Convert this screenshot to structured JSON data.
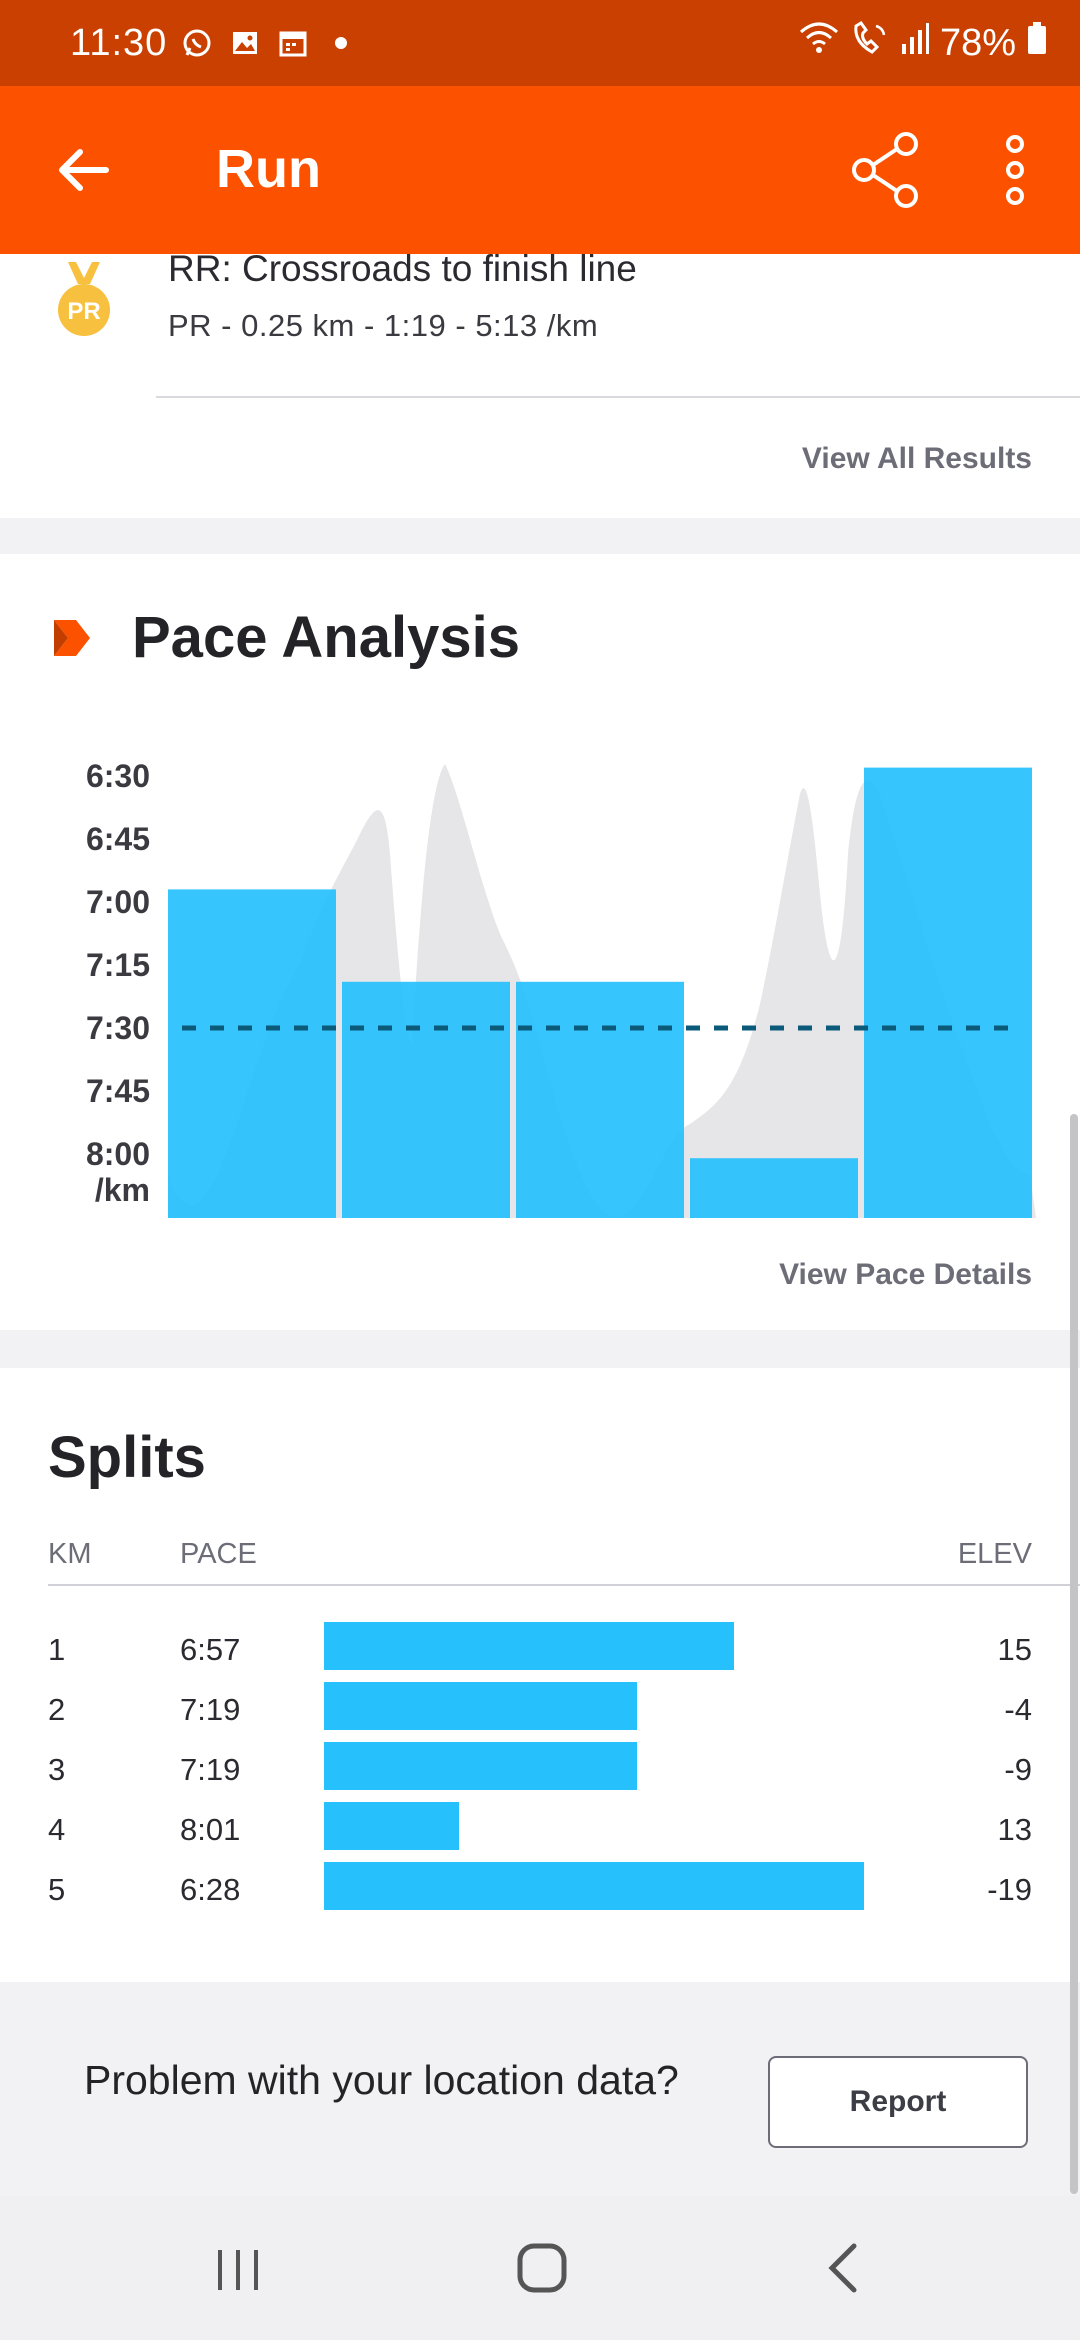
{
  "status_bar": {
    "time": "11:30",
    "battery": "78%",
    "left_icons": [
      "whatsapp-icon",
      "gallery-icon",
      "calendar-icon",
      "dot-icon"
    ],
    "right_icons": [
      "wifi-icon",
      "wifi-call-icon",
      "signal-icon",
      "battery-icon"
    ]
  },
  "app_bar": {
    "title": "Run",
    "color": "#fc5200",
    "icons": [
      "back-arrow-icon",
      "share-icon",
      "more-vert-icon"
    ]
  },
  "pr_result": {
    "badge": "PR",
    "title": "RR: Crossroads to finish line",
    "subtitle": "PR - 0.25 km - 1:19 - 5:13 /km",
    "view_all_label": "View All Results"
  },
  "pace_analysis": {
    "title": "Pace Analysis",
    "view_details_label": "View Pace Details"
  },
  "chart_data": {
    "type": "bar",
    "title": "Pace Analysis",
    "y_axis_unit": "/km",
    "y_ticks": [
      "6:30",
      "6:45",
      "7:00",
      "7:15",
      "7:30",
      "7:45",
      "8:00"
    ],
    "ylim": [
      "8:00",
      "6:30"
    ],
    "y_reversed": true,
    "categories": [
      "1",
      "2",
      "3",
      "4",
      "5"
    ],
    "values": [
      "6:57",
      "7:19",
      "7:19",
      "8:01",
      "6:28"
    ],
    "values_seconds": [
      417,
      439,
      439,
      481,
      388
    ],
    "average_line": "7:30",
    "average_line_seconds": 450,
    "bar_color": "#26c0fd",
    "average_line_color": "#0b5a7a",
    "elevation_profile_color": "#e6e6e8",
    "grid": false
  },
  "splits": {
    "title": "Splits",
    "headers": {
      "km": "KM",
      "pace": "PACE",
      "elev": "ELEV"
    },
    "rows": [
      {
        "km": "1",
        "pace": "6:57",
        "elev": "15",
        "bar_fraction": 0.76
      },
      {
        "km": "2",
        "pace": "7:19",
        "elev": "-4",
        "bar_fraction": 0.58
      },
      {
        "km": "3",
        "pace": "7:19",
        "elev": "-9",
        "bar_fraction": 0.58
      },
      {
        "km": "4",
        "pace": "8:01",
        "elev": "13",
        "bar_fraction": 0.25
      },
      {
        "km": "5",
        "pace": "6:28",
        "elev": "-19",
        "bar_fraction": 1.0
      }
    ]
  },
  "location_problem": {
    "text": "Problem with your location data?",
    "report_label": "Report"
  },
  "nav_bar": {
    "icons": [
      "recent-apps-icon",
      "home-icon",
      "nav-back-icon"
    ]
  }
}
